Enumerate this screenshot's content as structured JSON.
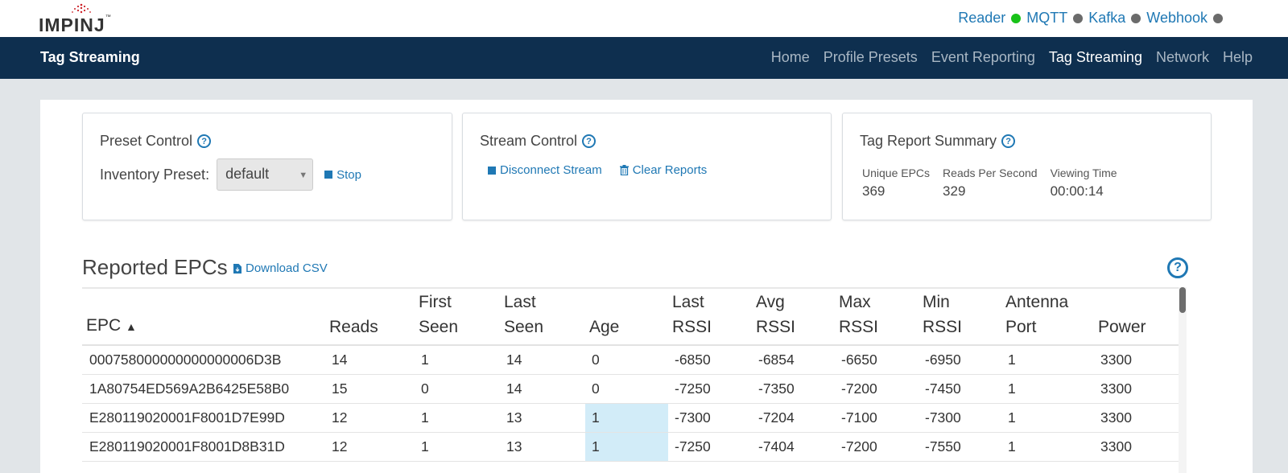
{
  "brand": {
    "name": "IMPINJ",
    "logo_color": "#cc2229"
  },
  "status": {
    "items": [
      {
        "label": "Reader",
        "color": "#18c218"
      },
      {
        "label": "MQTT",
        "color": "#6b6b6b"
      },
      {
        "label": "Kafka",
        "color": "#6b6b6b"
      },
      {
        "label": "Webhook",
        "color": "#6b6b6b"
      }
    ]
  },
  "nav": {
    "title": "Tag Streaming",
    "links": [
      "Home",
      "Profile Presets",
      "Event Reporting",
      "Tag Streaming",
      "Network",
      "Help"
    ],
    "active": "Tag Streaming"
  },
  "preset_control": {
    "title": "Preset Control",
    "label": "Inventory Preset:",
    "selected": "default",
    "stop_label": "Stop"
  },
  "stream_control": {
    "title": "Stream Control",
    "disconnect_label": "Disconnect Stream",
    "clear_label": "Clear Reports"
  },
  "summary": {
    "title": "Tag Report Summary",
    "unique_label": "Unique EPCs",
    "unique_value": "369",
    "rps_label": "Reads Per Second",
    "rps_value": "329",
    "time_label": "Viewing Time",
    "time_value": "00:00:14"
  },
  "epcs": {
    "title": "Reported EPCs",
    "download_label": "Download CSV",
    "columns": [
      {
        "l1": "",
        "l2": "EPC",
        "sort": "▲"
      },
      {
        "l1": "",
        "l2": "Reads"
      },
      {
        "l1": "First",
        "l2": "Seen"
      },
      {
        "l1": "Last",
        "l2": "Seen"
      },
      {
        "l1": "",
        "l2": "Age"
      },
      {
        "l1": "Last",
        "l2": "RSSI"
      },
      {
        "l1": "Avg",
        "l2": "RSSI"
      },
      {
        "l1": "Max",
        "l2": "RSSI"
      },
      {
        "l1": "Min",
        "l2": "RSSI"
      },
      {
        "l1": "Antenna",
        "l2": "Port"
      },
      {
        "l1": "",
        "l2": "Power"
      }
    ],
    "rows": [
      {
        "epc": "000758000000000000006D3B",
        "reads": "14",
        "first": "1",
        "last": "14",
        "age": "0",
        "age_hl": false,
        "last_rssi": "-6850",
        "avg_rssi": "-6854",
        "max_rssi": "-6650",
        "min_rssi": "-6950",
        "port": "1",
        "power": "3300"
      },
      {
        "epc": "1A80754ED569A2B6425E58B0",
        "reads": "15",
        "first": "0",
        "last": "14",
        "age": "0",
        "age_hl": false,
        "last_rssi": "-7250",
        "avg_rssi": "-7350",
        "max_rssi": "-7200",
        "min_rssi": "-7450",
        "port": "1",
        "power": "3300"
      },
      {
        "epc": "E280119020001F8001D7E99D",
        "reads": "12",
        "first": "1",
        "last": "13",
        "age": "1",
        "age_hl": true,
        "last_rssi": "-7300",
        "avg_rssi": "-7204",
        "max_rssi": "-7100",
        "min_rssi": "-7300",
        "port": "1",
        "power": "3300"
      },
      {
        "epc": "E280119020001F8001D8B31D",
        "reads": "12",
        "first": "1",
        "last": "13",
        "age": "1",
        "age_hl": true,
        "last_rssi": "-7250",
        "avg_rssi": "-7404",
        "max_rssi": "-7200",
        "min_rssi": "-7550",
        "port": "1",
        "power": "3300"
      }
    ]
  }
}
